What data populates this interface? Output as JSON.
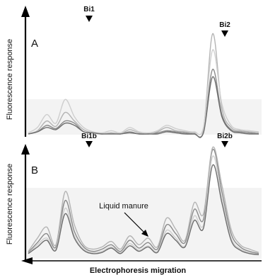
{
  "chart_data": [
    {
      "panel_label": "A",
      "type": "line",
      "title": "",
      "ylabel": "Fluorescence response",
      "xlabel": "",
      "peak_labels": [
        "Bi1",
        "Bi2"
      ],
      "grid": false,
      "legend": "none",
      "x": [
        0,
        4,
        8,
        12,
        16,
        20,
        24,
        28,
        32,
        36,
        40,
        44,
        48,
        52,
        56,
        60,
        64,
        68,
        72,
        76,
        80,
        84,
        88,
        92,
        96,
        100
      ],
      "series": [
        {
          "color": "#8a8a8a",
          "values": [
            2,
            4,
            10,
            7,
            14,
            12,
            4,
            3,
            2,
            3,
            2,
            4,
            2,
            2,
            3,
            5,
            4,
            3,
            2,
            4,
            62,
            20,
            6,
            4,
            3,
            2
          ]
        },
        {
          "color": "#b4b4b4",
          "values": [
            2,
            5,
            14,
            9,
            22,
            14,
            6,
            3,
            2,
            3,
            2,
            6,
            3,
            2,
            4,
            8,
            5,
            4,
            3,
            6,
            95,
            26,
            8,
            5,
            4,
            3
          ]
        },
        {
          "color": "#cfcfcf",
          "values": [
            3,
            8,
            20,
            12,
            34,
            18,
            8,
            4,
            3,
            5,
            3,
            8,
            4,
            3,
            5,
            10,
            7,
            5,
            4,
            8,
            80,
            30,
            10,
            6,
            5,
            4
          ]
        },
        {
          "color": "#6e6e6e",
          "values": [
            2,
            4,
            8,
            6,
            12,
            10,
            4,
            3,
            2,
            2,
            2,
            3,
            2,
            2,
            2,
            4,
            3,
            2,
            2,
            3,
            55,
            18,
            5,
            3,
            2,
            2
          ]
        }
      ]
    },
    {
      "panel_label": "B",
      "type": "line",
      "title": "",
      "ylabel": "Fluorescence response",
      "xlabel": "Electrophoresis migration",
      "peak_labels": [
        "Bi1b",
        "Bi2b"
      ],
      "annotation": "Liquid manure",
      "grid": false,
      "legend": "none",
      "x": [
        0,
        4,
        8,
        12,
        16,
        20,
        24,
        28,
        32,
        36,
        40,
        44,
        48,
        52,
        56,
        60,
        64,
        68,
        72,
        76,
        80,
        84,
        88,
        92,
        96,
        100
      ],
      "series": [
        {
          "color": "#8a8a8a",
          "values": [
            5,
            14,
            22,
            10,
            52,
            24,
            10,
            6,
            8,
            12,
            6,
            16,
            9,
            14,
            8,
            30,
            22,
            14,
            44,
            35,
            98,
            60,
            22,
            10,
            6,
            4
          ]
        },
        {
          "color": "#b4b4b4",
          "values": [
            6,
            18,
            28,
            12,
            60,
            30,
            12,
            8,
            10,
            15,
            8,
            20,
            12,
            18,
            10,
            36,
            26,
            16,
            50,
            40,
            100,
            66,
            26,
            12,
            8,
            5
          ]
        },
        {
          "color": "#cfcfcf",
          "values": [
            4,
            12,
            18,
            8,
            45,
            20,
            8,
            5,
            6,
            10,
            5,
            13,
            7,
            11,
            6,
            25,
            18,
            11,
            38,
            30,
            92,
            54,
            18,
            8,
            5,
            3
          ]
        },
        {
          "color": "#6e6e6e",
          "values": [
            4,
            10,
            16,
            7,
            40,
            18,
            7,
            4,
            5,
            9,
            4,
            11,
            6,
            10,
            5,
            22,
            16,
            10,
            34,
            27,
            84,
            50,
            16,
            7,
            4,
            3
          ]
        }
      ]
    }
  ]
}
